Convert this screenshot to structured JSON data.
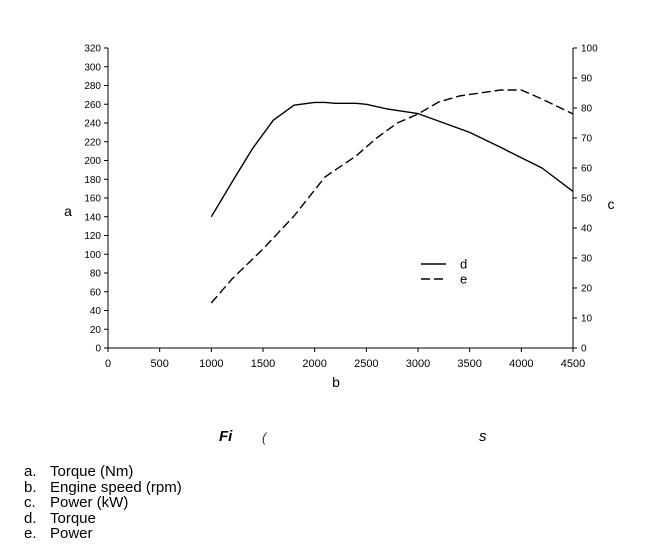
{
  "chart_data": {
    "type": "line",
    "x_axis": {
      "label": "b",
      "range": [
        0,
        4500
      ],
      "ticks": [
        0,
        500,
        1000,
        1500,
        2000,
        2500,
        3000,
        3500,
        4000,
        4500
      ]
    },
    "y_left": {
      "label": "a",
      "range": [
        0,
        320
      ],
      "ticks": [
        0,
        20,
        40,
        60,
        80,
        100,
        120,
        140,
        160,
        180,
        200,
        220,
        240,
        260,
        280,
        300,
        320
      ]
    },
    "y_right": {
      "label": "c",
      "range": [
        0,
        100
      ],
      "ticks": [
        0,
        10,
        20,
        30,
        40,
        50,
        60,
        70,
        80,
        90,
        100
      ]
    },
    "series": [
      {
        "name": "d",
        "axis": "left",
        "style": "solid",
        "x": [
          1000,
          1200,
          1400,
          1600,
          1800,
          2000,
          2100,
          2200,
          2400,
          2500,
          2700,
          3000,
          3200,
          3500,
          3800,
          4000,
          4200,
          4500
        ],
        "y": [
          140,
          177,
          213,
          243,
          259,
          262,
          262,
          261,
          261,
          260,
          255,
          250,
          242,
          230,
          214,
          203,
          192,
          167
        ]
      },
      {
        "name": "e",
        "axis": "right",
        "style": "dashed",
        "x": [
          1000,
          1200,
          1500,
          1800,
          2100,
          2400,
          2600,
          2800,
          3000,
          3200,
          3400,
          3600,
          3800,
          4000,
          4200,
          4500
        ],
        "y": [
          15,
          23,
          33,
          44,
          57,
          64,
          70,
          75,
          78,
          82,
          84,
          85,
          86,
          86,
          83,
          78
        ]
      }
    ],
    "legend": {
      "placement": "center-right",
      "entries": [
        {
          "key": "d",
          "style": "solid"
        },
        {
          "key": "e",
          "style": "dashed"
        }
      ]
    },
    "grid": false
  },
  "caption": {
    "prefix": "Fi",
    "middle": "(",
    "suffix": "s"
  },
  "notes": [
    {
      "key": "a.",
      "text": "Torque (Nm)"
    },
    {
      "key": "b.",
      "text": "Engine speed (rpm)"
    },
    {
      "key": "c.",
      "text": "Power (kW)"
    },
    {
      "key": "d.",
      "text": "Torque"
    },
    {
      "key": "e.",
      "text": "Power"
    }
  ]
}
